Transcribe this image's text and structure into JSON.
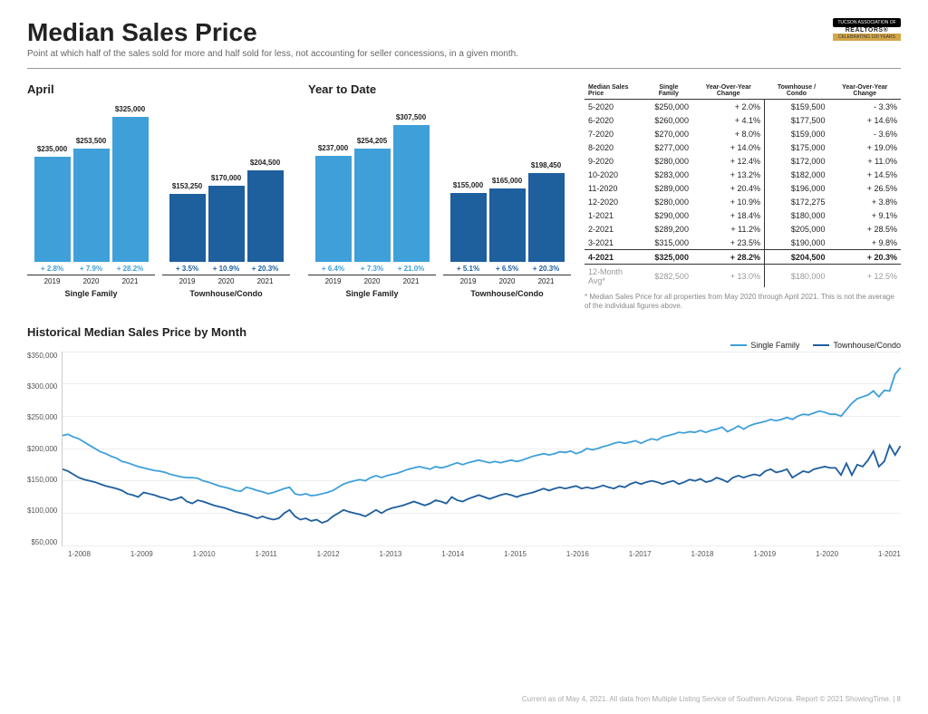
{
  "header": {
    "title": "Median Sales Price",
    "subtitle": "Point at which half of the sales sold for more and half sold for less, not accounting for seller concessions, in a given month.",
    "logo_top": "TUCSON ASSOCIATION OF",
    "logo_mid": "REALTORS®",
    "logo_bot": "CELEBRATING 100 YEARS"
  },
  "colors": {
    "sf": "#3fa0d9",
    "tc": "#1e5f9e",
    "grid": "#eeeeee"
  },
  "bar_charts": [
    {
      "title": "April",
      "sets": [
        {
          "label": "Single Family",
          "color_key": "sf",
          "bars": [
            {
              "year": "2019",
              "value": 235000,
              "label": "$235,000",
              "pct": "+ 2.8%"
            },
            {
              "year": "2020",
              "value": 253500,
              "label": "$253,500",
              "pct": "+ 7.9%"
            },
            {
              "year": "2021",
              "value": 325000,
              "label": "$325,000",
              "pct": "+ 28.2%"
            }
          ]
        },
        {
          "label": "Townhouse/Condo",
          "color_key": "tc",
          "bars": [
            {
              "year": "2019",
              "value": 153250,
              "label": "$153,250",
              "pct": "+ 3.5%"
            },
            {
              "year": "2020",
              "value": 170000,
              "label": "$170,000",
              "pct": "+ 10.9%"
            },
            {
              "year": "2021",
              "value": 204500,
              "label": "$204,500",
              "pct": "+ 20.3%"
            }
          ]
        }
      ]
    },
    {
      "title": "Year to Date",
      "sets": [
        {
          "label": "Single Family",
          "color_key": "sf",
          "bars": [
            {
              "year": "2019",
              "value": 237000,
              "label": "$237,000",
              "pct": "+ 6.4%"
            },
            {
              "year": "2020",
              "value": 254205,
              "label": "$254,205",
              "pct": "+ 7.3%"
            },
            {
              "year": "2021",
              "value": 307500,
              "label": "$307,500",
              "pct": "+ 21.0%"
            }
          ]
        },
        {
          "label": "Townhouse/Condo",
          "color_key": "tc",
          "bars": [
            {
              "year": "2019",
              "value": 155000,
              "label": "$155,000",
              "pct": "+ 5.1%"
            },
            {
              "year": "2020",
              "value": 165000,
              "label": "$165,000",
              "pct": "+ 6.5%"
            },
            {
              "year": "2021",
              "value": 198450,
              "label": "$198,450",
              "pct": "+ 20.3%"
            }
          ]
        }
      ]
    }
  ],
  "bar_ymax": 325000,
  "table": {
    "headers": [
      "Median Sales Price",
      "Single Family",
      "Year-Over-Year Change",
      "Townhouse / Condo",
      "Year-Over-Year Change"
    ],
    "rows": [
      [
        "5-2020",
        "$250,000",
        "+ 2.0%",
        "$159,500",
        "- 3.3%"
      ],
      [
        "6-2020",
        "$260,000",
        "+ 4.1%",
        "$177,500",
        "+ 14.6%"
      ],
      [
        "7-2020",
        "$270,000",
        "+ 8.0%",
        "$159,000",
        "- 3.6%"
      ],
      [
        "8-2020",
        "$277,000",
        "+ 14.0%",
        "$175,000",
        "+ 19.0%"
      ],
      [
        "9-2020",
        "$280,000",
        "+ 12.4%",
        "$172,000",
        "+ 11.0%"
      ],
      [
        "10-2020",
        "$283,000",
        "+ 13.2%",
        "$182,000",
        "+ 14.5%"
      ],
      [
        "11-2020",
        "$289,000",
        "+ 20.4%",
        "$196,000",
        "+ 26.5%"
      ],
      [
        "12-2020",
        "$280,000",
        "+ 10.9%",
        "$172,275",
        "+ 3.8%"
      ],
      [
        "1-2021",
        "$290,000",
        "+ 18.4%",
        "$180,000",
        "+ 9.1%"
      ],
      [
        "2-2021",
        "$289,200",
        "+ 11.2%",
        "$205,000",
        "+ 28.5%"
      ],
      [
        "3-2021",
        "$315,000",
        "+ 23.5%",
        "$190,000",
        "+ 9.8%"
      ]
    ],
    "bold_row": [
      "4-2021",
      "$325,000",
      "+ 28.2%",
      "$204,500",
      "+ 20.3%"
    ],
    "avg_row": [
      "12-Month Avg*",
      "$282,500",
      "+ 13.0%",
      "$180,000",
      "+ 12.5%"
    ],
    "footnote": "* Median Sales Price for all properties from May 2020 through April 2021. This is not the average of the individual figures above."
  },
  "line_chart": {
    "title": "Historical Median Sales Price by Month",
    "legend": [
      {
        "label": "Single Family",
        "color_key": "sf"
      },
      {
        "label": "Townhouse/Condo",
        "color_key": "tc"
      }
    ],
    "ylim": [
      50000,
      350000
    ],
    "ytick_labels": [
      "$350,000",
      "$300,000",
      "$250,000",
      "$200,000",
      "$150,000",
      "$100,000",
      "$50,000"
    ],
    "x_labels": [
      "1-2008",
      "1-2009",
      "1-2010",
      "1-2011",
      "1-2012",
      "1-2013",
      "1-2014",
      "1-2015",
      "1-2016",
      "1-2017",
      "1-2018",
      "1-2019",
      "1-2020",
      "1-2021"
    ],
    "series": [
      {
        "color_key": "sf",
        "data": [
          220000,
          222000,
          218000,
          215000,
          210000,
          205000,
          200000,
          195000,
          192000,
          188000,
          185000,
          180000,
          178000,
          175000,
          172000,
          170000,
          168000,
          166000,
          165000,
          163000,
          160000,
          158000,
          156000,
          155000,
          155000,
          154000,
          150000,
          148000,
          145000,
          142000,
          140000,
          138000,
          135000,
          134000,
          140000,
          138000,
          135000,
          133000,
          130000,
          132000,
          135000,
          138000,
          140000,
          130000,
          128000,
          130000,
          127000,
          128000,
          130000,
          132000,
          135000,
          140000,
          145000,
          148000,
          150000,
          152000,
          150000,
          155000,
          158000,
          155000,
          158000,
          160000,
          162000,
          165000,
          168000,
          170000,
          172000,
          170000,
          168000,
          172000,
          170000,
          172000,
          175000,
          178000,
          175000,
          178000,
          180000,
          182000,
          180000,
          178000,
          180000,
          178000,
          180000,
          182000,
          180000,
          182000,
          185000,
          188000,
          190000,
          192000,
          190000,
          192000,
          195000,
          194000,
          196000,
          192000,
          195000,
          200000,
          198000,
          200000,
          203000,
          205000,
          208000,
          210000,
          208000,
          210000,
          212000,
          208000,
          212000,
          215000,
          213000,
          218000,
          220000,
          222000,
          225000,
          224000,
          226000,
          225000,
          228000,
          225000,
          228000,
          230000,
          233000,
          226000,
          230000,
          235000,
          230000,
          235000,
          238000,
          240000,
          242000,
          245000,
          243000,
          245000,
          248000,
          245000,
          250000,
          253000,
          252000,
          255000,
          258000,
          256000,
          253000,
          253000,
          250000,
          260000,
          270000,
          277000,
          280000,
          283000,
          289000,
          280000,
          290000,
          289000,
          315000,
          325000
        ]
      },
      {
        "color_key": "tc",
        "data": [
          168000,
          165000,
          160000,
          155000,
          152000,
          150000,
          148000,
          145000,
          142000,
          140000,
          138000,
          135000,
          130000,
          128000,
          125000,
          132000,
          130000,
          128000,
          125000,
          123000,
          120000,
          122000,
          125000,
          118000,
          115000,
          120000,
          118000,
          115000,
          112000,
          110000,
          108000,
          105000,
          102000,
          100000,
          98000,
          95000,
          92000,
          95000,
          92000,
          90000,
          92000,
          100000,
          105000,
          95000,
          90000,
          92000,
          88000,
          90000,
          85000,
          88000,
          95000,
          100000,
          105000,
          102000,
          100000,
          98000,
          95000,
          100000,
          105000,
          100000,
          105000,
          108000,
          110000,
          112000,
          115000,
          118000,
          115000,
          112000,
          115000,
          120000,
          118000,
          115000,
          125000,
          120000,
          118000,
          122000,
          125000,
          128000,
          125000,
          122000,
          125000,
          128000,
          130000,
          128000,
          125000,
          128000,
          130000,
          132000,
          135000,
          138000,
          135000,
          138000,
          140000,
          138000,
          140000,
          142000,
          138000,
          140000,
          138000,
          140000,
          143000,
          140000,
          138000,
          142000,
          140000,
          145000,
          148000,
          145000,
          148000,
          150000,
          148000,
          145000,
          148000,
          150000,
          145000,
          148000,
          152000,
          150000,
          153000,
          148000,
          150000,
          155000,
          152000,
          148000,
          155000,
          158000,
          155000,
          158000,
          160000,
          158000,
          165000,
          168000,
          163000,
          165000,
          168000,
          155000,
          160000,
          165000,
          163000,
          168000,
          170000,
          172000,
          170000,
          170000,
          159000,
          177000,
          159000,
          175000,
          172000,
          182000,
          196000,
          172000,
          180000,
          205000,
          190000,
          204000
        ]
      }
    ]
  },
  "footer": "Current as of May 4, 2021. All data from Multiple Listing Service of Southern Arizona. Report © 2021 ShowingTime.  |  8"
}
